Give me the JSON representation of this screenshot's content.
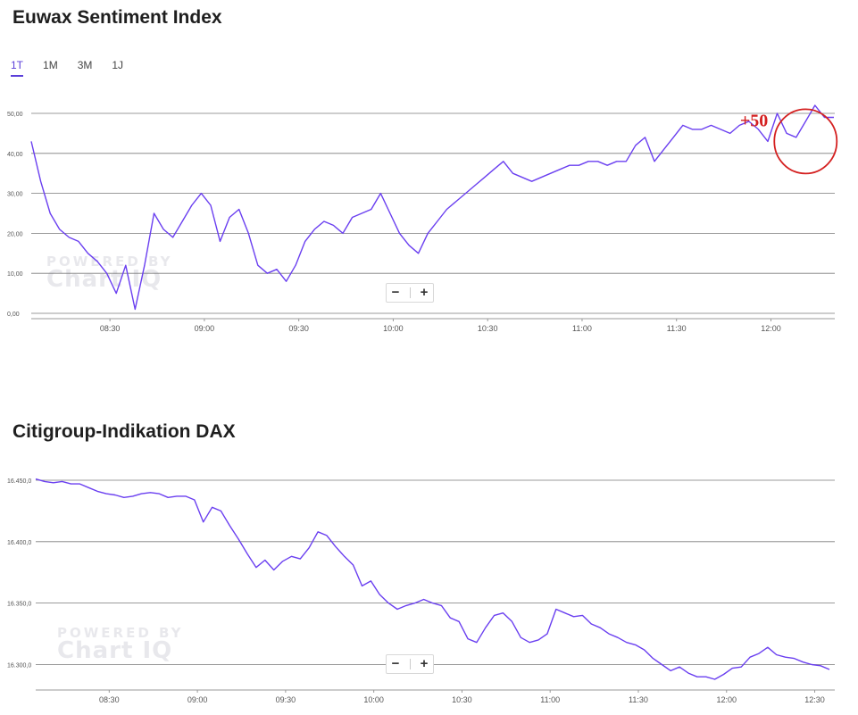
{
  "sections": [
    {
      "title": "Euwax Sentiment Index"
    },
    {
      "title": "Citigroup-Indikation DAX"
    }
  ],
  "tabs": [
    "1T",
    "1M",
    "3M",
    "1J"
  ],
  "active_tab": "1T",
  "zoom": {
    "minus": "−",
    "plus": "+"
  },
  "watermark": {
    "line1": "POWERED BY",
    "line2": "Chart IQ"
  },
  "annotation": {
    "text": "+50",
    "color": "#d42020"
  },
  "colors": {
    "line": "#6a3ff0",
    "grid": "#7a7a7a"
  },
  "chart_data": [
    {
      "type": "line",
      "title": "Euwax Sentiment Index",
      "x_range": [
        "08:05",
        "12:20"
      ],
      "ylim": [
        0,
        50
      ],
      "yticks": [
        0,
        10,
        20,
        30,
        40,
        50
      ],
      "ytick_labels": [
        "0,00",
        "10,00",
        "20,00",
        "30,00",
        "40,00",
        "50,00"
      ],
      "xticks": [
        "08:30",
        "09:00",
        "09:30",
        "10:00",
        "10:30",
        "11:00",
        "11:30",
        "12:00"
      ],
      "x": [
        "08:05",
        "08:08",
        "08:11",
        "08:14",
        "08:17",
        "08:20",
        "08:23",
        "08:26",
        "08:29",
        "08:32",
        "08:35",
        "08:38",
        "08:41",
        "08:44",
        "08:47",
        "08:50",
        "08:53",
        "08:56",
        "08:59",
        "09:02",
        "09:05",
        "09:08",
        "09:11",
        "09:14",
        "09:17",
        "09:20",
        "09:23",
        "09:26",
        "09:29",
        "09:32",
        "09:35",
        "09:38",
        "09:41",
        "09:44",
        "09:47",
        "09:50",
        "09:53",
        "09:56",
        "09:59",
        "10:02",
        "10:05",
        "10:08",
        "10:11",
        "10:14",
        "10:17",
        "10:20",
        "10:23",
        "10:26",
        "10:29",
        "10:32",
        "10:35",
        "10:38",
        "10:41",
        "10:44",
        "10:47",
        "10:50",
        "10:53",
        "10:56",
        "10:59",
        "11:02",
        "11:05",
        "11:08",
        "11:11",
        "11:14",
        "11:17",
        "11:20",
        "11:23",
        "11:26",
        "11:29",
        "11:32",
        "11:35",
        "11:38",
        "11:41",
        "11:44",
        "11:47",
        "11:50",
        "11:53",
        "11:56",
        "11:59",
        "12:02",
        "12:05",
        "12:08",
        "12:11",
        "12:14",
        "12:17",
        "12:20"
      ],
      "values": [
        43,
        33,
        25,
        21,
        19,
        18,
        15,
        13,
        10,
        5,
        12,
        1,
        12,
        25,
        21,
        19,
        23,
        27,
        30,
        27,
        18,
        24,
        26,
        20,
        12,
        10,
        11,
        8,
        12,
        18,
        21,
        23,
        22,
        20,
        24,
        25,
        26,
        30,
        25,
        20,
        17,
        15,
        20,
        23,
        26,
        28,
        30,
        32,
        34,
        36,
        38,
        35,
        34,
        33,
        34,
        35,
        36,
        37,
        37,
        38,
        38,
        37,
        38,
        38,
        42,
        44,
        38,
        41,
        44,
        47,
        46,
        46,
        47,
        46,
        45,
        47,
        48,
        46,
        43,
        50,
        45,
        44,
        48,
        52,
        49,
        49
      ],
      "series_name": "Euwax Sentiment Index"
    },
    {
      "type": "line",
      "title": "Citigroup-Indikation DAX",
      "x_range": [
        "08:05",
        "12:35"
      ],
      "ylim": [
        16280,
        16450
      ],
      "yticks": [
        16300,
        16350,
        16400,
        16450
      ],
      "ytick_labels": [
        "16.300,0",
        "16.350,0",
        "16.400,0",
        "16.450,0"
      ],
      "xticks": [
        "08:30",
        "09:00",
        "09:30",
        "10:00",
        "10:30",
        "11:00",
        "11:30",
        "12:00",
        "12:30"
      ],
      "x": [
        "08:05",
        "08:08",
        "08:11",
        "08:14",
        "08:17",
        "08:20",
        "08:23",
        "08:26",
        "08:29",
        "08:32",
        "08:35",
        "08:38",
        "08:41",
        "08:44",
        "08:47",
        "08:50",
        "08:53",
        "08:56",
        "08:59",
        "09:02",
        "09:05",
        "09:08",
        "09:11",
        "09:14",
        "09:17",
        "09:20",
        "09:23",
        "09:26",
        "09:29",
        "09:32",
        "09:35",
        "09:38",
        "09:41",
        "09:44",
        "09:47",
        "09:50",
        "09:53",
        "09:56",
        "09:59",
        "10:02",
        "10:05",
        "10:08",
        "10:11",
        "10:14",
        "10:17",
        "10:20",
        "10:23",
        "10:26",
        "10:29",
        "10:32",
        "10:35",
        "10:38",
        "10:41",
        "10:44",
        "10:47",
        "10:50",
        "10:53",
        "10:56",
        "10:59",
        "11:02",
        "11:05",
        "11:08",
        "11:11",
        "11:14",
        "11:17",
        "11:20",
        "11:23",
        "11:26",
        "11:29",
        "11:32",
        "11:35",
        "11:38",
        "11:41",
        "11:44",
        "11:47",
        "11:50",
        "11:53",
        "11:56",
        "11:59",
        "12:02",
        "12:05",
        "12:08",
        "12:11",
        "12:14",
        "12:17",
        "12:20",
        "12:23",
        "12:26",
        "12:29",
        "12:32",
        "12:35"
      ],
      "values": [
        16451,
        16449,
        16448,
        16449,
        16447,
        16447,
        16444,
        16441,
        16439,
        16438,
        16436,
        16437,
        16439,
        16440,
        16439,
        16436,
        16437,
        16437,
        16434,
        16416,
        16428,
        16425,
        16413,
        16402,
        16390,
        16379,
        16385,
        16377,
        16384,
        16388,
        16386,
        16395,
        16408,
        16405,
        16396,
        16388,
        16381,
        16364,
        16368,
        16357,
        16350,
        16345,
        16348,
        16350,
        16353,
        16350,
        16348,
        16338,
        16335,
        16321,
        16318,
        16330,
        16340,
        16342,
        16335,
        16322,
        16318,
        16320,
        16325,
        16345,
        16342,
        16339,
        16340,
        16333,
        16330,
        16325,
        16322,
        16318,
        16316,
        16312,
        16305,
        16300,
        16295,
        16298,
        16293,
        16290,
        16290,
        16288,
        16292,
        16297,
        16298,
        16306,
        16309,
        16314,
        16308,
        16306,
        16305,
        16302,
        16300,
        16299,
        16296
      ],
      "series_name": "Citigroup-Indikation DAX"
    }
  ]
}
